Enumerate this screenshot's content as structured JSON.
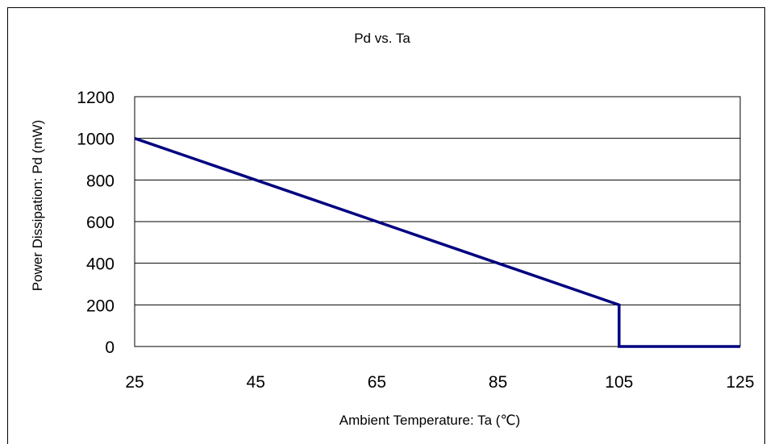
{
  "chart_data": {
    "type": "line",
    "title": "Pd vs. Ta",
    "xlabel": "Ambient Temperature: Ta (℃)",
    "ylabel": "Power Dissipation: Pd (mW)",
    "xlim": [
      25,
      125
    ],
    "ylim": [
      0,
      1200
    ],
    "x_ticks": [
      "25",
      "45",
      "65",
      "85",
      "105",
      "125"
    ],
    "y_ticks": [
      "0",
      "200",
      "400",
      "600",
      "800",
      "1000",
      "1200"
    ],
    "grid": "horizontal",
    "line_color": "#000080",
    "series": [
      {
        "x": [
          25,
          105,
          105,
          125
        ],
        "y": [
          1000,
          200,
          0,
          0
        ]
      }
    ]
  }
}
